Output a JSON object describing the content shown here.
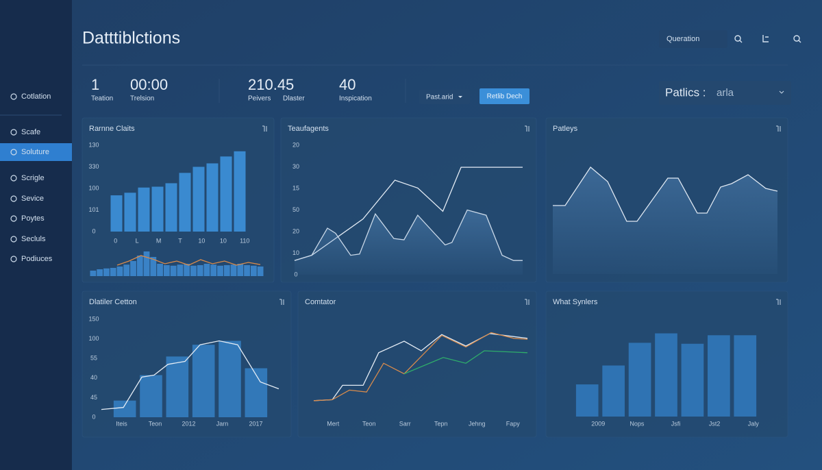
{
  "header": {
    "title": "Datttiblctions",
    "search": "Queration"
  },
  "sidebar": {
    "items": [
      "Cotlation",
      "Scafe",
      "Soluture",
      "Scrigle",
      "Sevice",
      "Poytes",
      "Secluls",
      "Podiuces"
    ],
    "active": 2
  },
  "stats": [
    {
      "value": 1,
      "label": "Teation"
    },
    {
      "value": "00:00",
      "label": "Trelsion"
    },
    {
      "value": 210.45,
      "label": "Peivers",
      "sublabel": "Dlaster"
    },
    {
      "value": 40,
      "label": "Inspication"
    }
  ],
  "controls": {
    "dropdown": "Past.arid",
    "button": "Retlib Dech",
    "select_label": "Patlics :",
    "select_value": "arla"
  },
  "chart_data": [
    {
      "type": "bar",
      "title": "Rarnne Claits",
      "y_labels": [
        "130",
        "330",
        "100",
        "101",
        "0"
      ],
      "x_labels": [
        "0",
        "L",
        "M",
        "T",
        "10",
        "10",
        "110"
      ],
      "ylim": [
        0,
        100
      ],
      "values": [
        42,
        45,
        51,
        52,
        56,
        68,
        75,
        79,
        87,
        93
      ],
      "color": "#3a8ad0",
      "mini_values": [
        20,
        25,
        28,
        30,
        35,
        42,
        55,
        75,
        90,
        70,
        45,
        40,
        38,
        42,
        45,
        38,
        40,
        45,
        42,
        38,
        40,
        42,
        45,
        40,
        38,
        35
      ],
      "mini_color": "#3a82c6",
      "mini_line": {
        "color": "#d98a4a",
        "values": [
          40,
          55,
          75,
          62,
          45,
          55,
          40,
          60,
          45,
          55,
          40,
          50,
          42
        ]
      }
    },
    {
      "type": "line",
      "title": "Teaufagents",
      "y_labels": [
        "20",
        "30",
        "15",
        "50",
        "20",
        "10",
        "0"
      ],
      "xlim": [
        0,
        100
      ],
      "ylim": [
        0,
        100
      ],
      "series": [
        {
          "color": "#e4ecf5",
          "x": [
            0,
            7.5,
            30,
            44,
            54,
            65,
            73,
            100
          ],
          "values": [
            11,
            15,
            43,
            73,
            67,
            49,
            83,
            83
          ]
        },
        {
          "color": "#c9d8e8",
          "fill_area": true,
          "x": [
            0,
            7.5,
            14.4,
            18,
            24.6,
            28.5,
            35.4,
            43.5,
            48,
            54,
            66,
            69,
            75.7,
            84,
            91,
            96,
            100
          ],
          "values": [
            11,
            15,
            36,
            32,
            15,
            16,
            47,
            28,
            27,
            46,
            23,
            25,
            50,
            46,
            15,
            11,
            11
          ]
        }
      ]
    },
    {
      "type": "line",
      "title": "Patleys",
      "xlim": [
        0,
        100
      ],
      "ylim": [
        0,
        100
      ],
      "series": [
        {
          "color": "#dfe8f2",
          "fill_area": true,
          "x": [
            0,
            5.5,
            16.8,
            24.4,
            32.9,
            37.5,
            51.2,
            55.8,
            64.3,
            68.6,
            74.7,
            79.6,
            86.9,
            94.8,
            100
          ],
          "values": [
            50,
            50,
            78,
            67.5,
            38.5,
            38.5,
            70,
            70,
            44.5,
            44.5,
            63.5,
            66,
            72.5,
            62.5,
            60.5
          ]
        }
      ]
    },
    {
      "type": "bar",
      "title": "Dlatiler Cetton",
      "y_labels": [
        "150",
        "100",
        "55",
        "40",
        "45",
        "0"
      ],
      "x_labels": [
        "Iteis",
        "Teon",
        "2012",
        "Jarn",
        "2017"
      ],
      "ylim": [
        0,
        100
      ],
      "xlim": [
        0,
        100
      ],
      "values": [
        17,
        43,
        62,
        74,
        78,
        50
      ],
      "color": "#3278b8",
      "line": {
        "color": "#e4ecf5",
        "x": [
          0,
          12.4,
          22.8,
          29.7,
          37.5,
          47.1,
          55.6,
          66.4,
          76.8,
          89.6,
          100
        ],
        "values": [
          8,
          10,
          41,
          43,
          54,
          57,
          74,
          78,
          74,
          36,
          29
        ]
      }
    },
    {
      "type": "line",
      "title": "Comtator",
      "x_labels": [
        "Mert",
        "Teon",
        "Sarr",
        "Tepn",
        "Jehng",
        "Fapy"
      ],
      "xlim": [
        0,
        100
      ],
      "ylim": [
        0,
        100
      ],
      "series": [
        {
          "color": "#e4ecf5",
          "x": [
            0,
            8.7,
            13.5,
            23.1,
            30.4,
            42.3,
            50.3,
            59.9,
            71.2,
            82.4,
            100
          ],
          "values": [
            18,
            19,
            34,
            34,
            68,
            80,
            70,
            87,
            75,
            88,
            83
          ]
        },
        {
          "color": "#d88b4c",
          "x": [
            0,
            8.7,
            16.7,
            24.7,
            32.7,
            42.3,
            59.9,
            71.2,
            83,
            93.6,
            100
          ],
          "values": [
            18,
            19,
            29,
            27,
            57,
            46,
            86,
            74,
            89,
            83,
            82
          ]
        },
        {
          "color": "#2fae6a",
          "x": [
            42.3,
            60.6,
            71.2,
            79.8,
            100
          ],
          "values": [
            46,
            63,
            57,
            70,
            68
          ]
        }
      ]
    },
    {
      "type": "bar",
      "title": "What Synlers",
      "x_labels": [
        "2009",
        "Nops",
        "Jsfi",
        "Jst2",
        "Jaly"
      ],
      "ylim": [
        0,
        100
      ],
      "values": [
        34,
        54,
        78,
        88,
        77,
        86,
        86
      ],
      "color": "#2f73b3"
    }
  ]
}
